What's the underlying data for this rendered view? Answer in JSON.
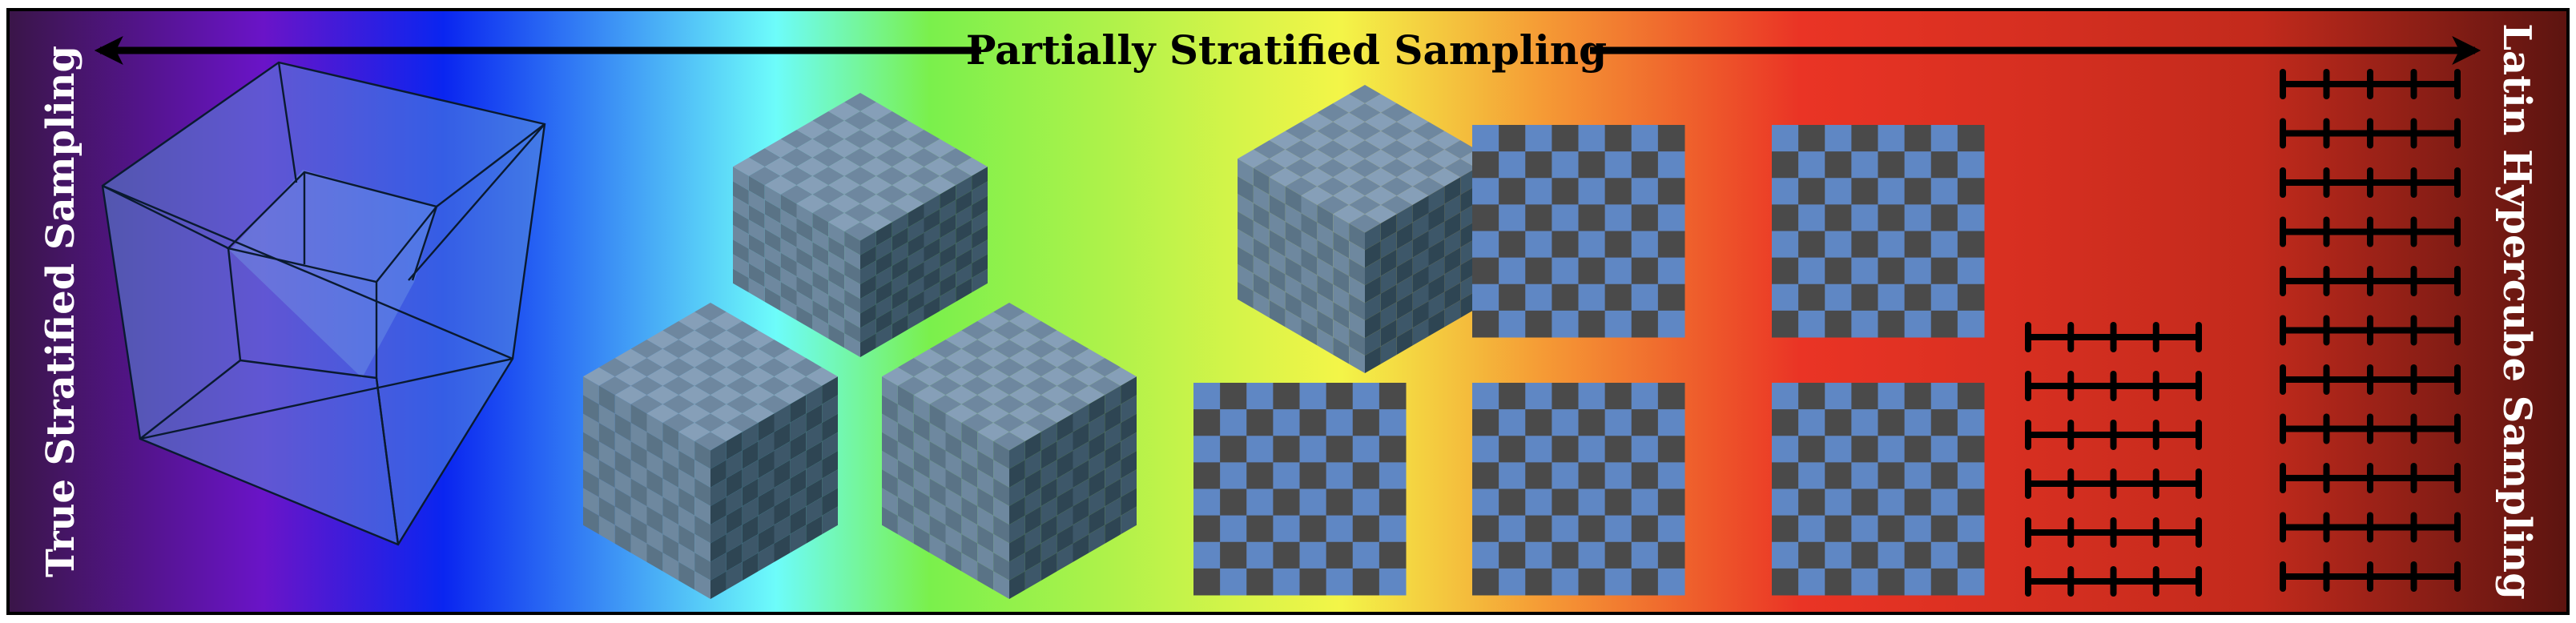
{
  "diagram": {
    "title": "Partially Stratified Sampling",
    "left_label": "True Stratified Sampling",
    "right_label": "Latin Hypercube Sampling",
    "colors": {
      "gradient": [
        "#3a1548",
        "#6a14c8",
        "#0a25f0",
        "#6dfcfa",
        "#7af04c",
        "#f3f548",
        "#f59a35",
        "#ea3425",
        "#c22a1c",
        "#5c1410"
      ],
      "checker_light": "#5f87c4",
      "checker_dark": "#4a4a4a",
      "cube_top_light": "#869fb8",
      "cube_top_dark": "#6e879f",
      "cube_left_light": "#6e889f",
      "cube_left_dark": "#5a7386",
      "cube_right_light": "#3d5769",
      "cube_right_dark": "#2e4553",
      "tesseract": "#5a8cdc",
      "ink": "#000000",
      "label_text": "#ffffff"
    },
    "icons": [
      "tesseract-icon",
      "checker-cube-icon",
      "checker-square-icon",
      "tick-line-icon"
    ],
    "checker_grid_size": 8,
    "short_tick_rows": 6,
    "long_tick_rows": 11,
    "ticks_per_line": 5
  }
}
